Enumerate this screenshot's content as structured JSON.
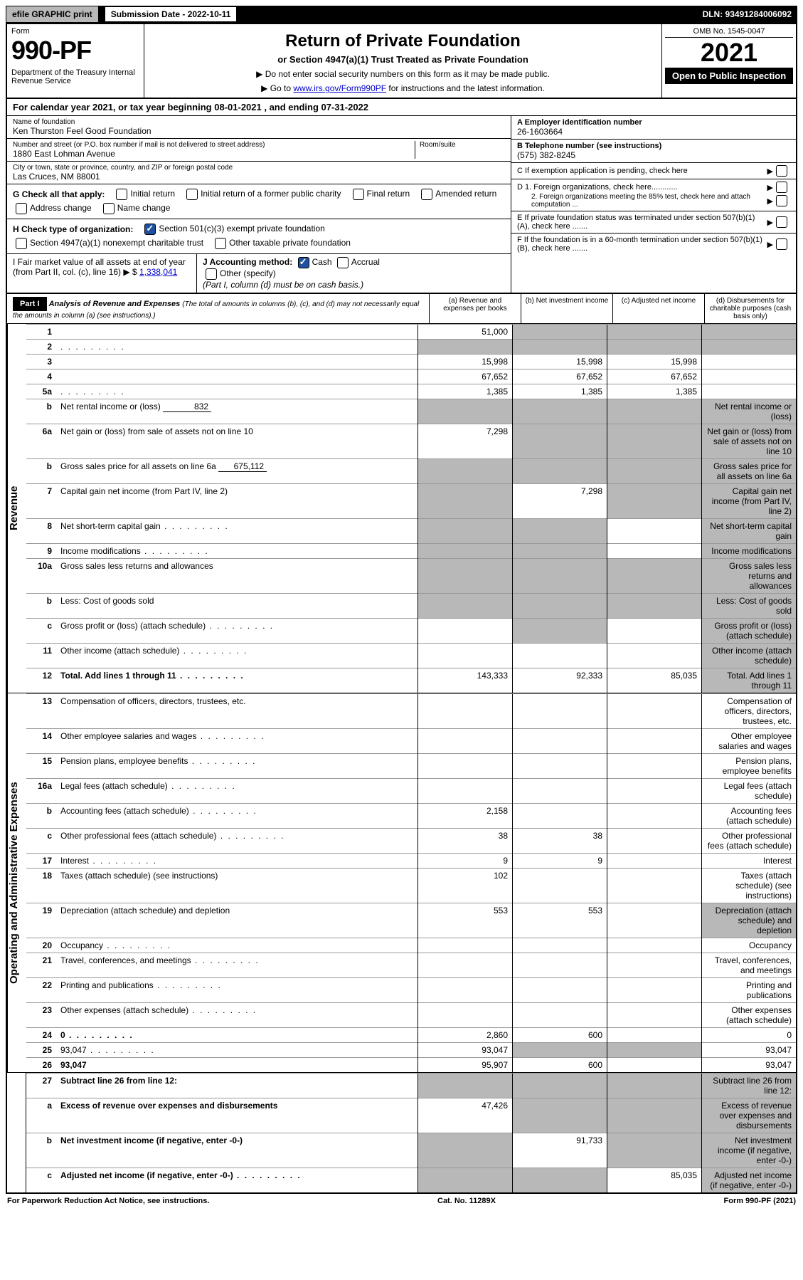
{
  "topbar": {
    "efile": "efile GRAPHIC print",
    "submission_label": "Submission Date - 2022-10-11",
    "dln": "DLN: 93491284006092"
  },
  "header": {
    "form_label": "Form",
    "form_number": "990-PF",
    "dept": "Department of the Treasury\nInternal Revenue Service",
    "title": "Return of Private Foundation",
    "subtitle": "or Section 4947(a)(1) Trust Treated as Private Foundation",
    "note1": "▶ Do not enter social security numbers on this form as it may be made public.",
    "note2_pre": "▶ Go to ",
    "note2_link": "www.irs.gov/Form990PF",
    "note2_post": " for instructions and the latest information.",
    "omb": "OMB No. 1545-0047",
    "year": "2021",
    "open": "Open to Public Inspection"
  },
  "calyear": {
    "text_pre": "For calendar year 2021, or tax year beginning ",
    "begin": "08-01-2021",
    "mid": " , and ending ",
    "end": "07-31-2022"
  },
  "entity": {
    "name_label": "Name of foundation",
    "name": "Ken Thurston Feel Good Foundation",
    "addr_label": "Number and street (or P.O. box number if mail is not delivered to street address)",
    "room_label": "Room/suite",
    "addr": "1880 East Lohman Avenue",
    "city_label": "City or town, state or province, country, and ZIP or foreign postal code",
    "city": "Las Cruces, NM  88001",
    "a_label": "A Employer identification number",
    "a_val": "26-1603664",
    "b_label": "B Telephone number (see instructions)",
    "b_val": "(575) 382-8245",
    "c_label": "C If exemption application is pending, check here",
    "d1": "D 1. Foreign organizations, check here............",
    "d2": "2. Foreign organizations meeting the 85% test, check here and attach computation ...",
    "e": "E  If private foundation status was terminated under section 507(b)(1)(A), check here .......",
    "f": "F  If the foundation is in a 60-month termination under section 507(b)(1)(B), check here .......",
    "g_label": "G Check all that apply:",
    "g_opts": [
      "Initial return",
      "Initial return of a former public charity",
      "Final return",
      "Amended return",
      "Address change",
      "Name change"
    ],
    "h_label": "H Check type of organization:",
    "h_opts": [
      "Section 501(c)(3) exempt private foundation",
      "Section 4947(a)(1) nonexempt charitable trust",
      "Other taxable private foundation"
    ],
    "i_label": "I Fair market value of all assets at end of year (from Part II, col. (c), line 16) ▶ $",
    "i_val": "1,338,041",
    "j_label": "J Accounting method:",
    "j_cash": "Cash",
    "j_accrual": "Accrual",
    "j_other": "Other (specify)",
    "j_note": "(Part I, column (d) must be on cash basis.)"
  },
  "part1": {
    "label": "Part I",
    "title": "Analysis of Revenue and Expenses",
    "subtitle": "(The total of amounts in columns (b), (c), and (d) may not necessarily equal the amounts in column (a) (see instructions).)",
    "cols": {
      "a": "(a) Revenue and expenses per books",
      "b": "(b) Net investment income",
      "c": "(c) Adjusted net income",
      "d": "(d) Disbursements for charitable purposes (cash basis only)"
    },
    "side_rev": "Revenue",
    "side_exp": "Operating and Administrative Expenses",
    "rows": [
      {
        "n": "1",
        "d": "",
        "a": "51,000",
        "b": "",
        "c": "",
        "shade_bcd": true
      },
      {
        "n": "2",
        "d": "",
        "a": "",
        "b": "",
        "c": "",
        "shade_all": true,
        "dots": true
      },
      {
        "n": "3",
        "d": "",
        "a": "15,998",
        "b": "15,998",
        "c": "15,998"
      },
      {
        "n": "4",
        "d": "",
        "a": "67,652",
        "b": "67,652",
        "c": "67,652"
      },
      {
        "n": "5a",
        "d": "",
        "a": "1,385",
        "b": "1,385",
        "c": "1,385",
        "dots": true
      },
      {
        "n": "b",
        "d": "Net rental income or (loss)",
        "fill": "832",
        "shade_abcd": true
      },
      {
        "n": "6a",
        "d": "Net gain or (loss) from sale of assets not on line 10",
        "a": "7,298",
        "shade_bcd": true
      },
      {
        "n": "b",
        "d": "Gross sales price for all assets on line 6a",
        "fill": "675,112",
        "shade_abcd": true
      },
      {
        "n": "7",
        "d": "Capital gain net income (from Part IV, line 2)",
        "b": "7,298",
        "shade_a": true,
        "shade_cd": true
      },
      {
        "n": "8",
        "d": "Net short-term capital gain",
        "shade_ab": true,
        "shade_d": true,
        "dots": true
      },
      {
        "n": "9",
        "d": "Income modifications",
        "shade_ab": true,
        "shade_d": true,
        "dots": true
      },
      {
        "n": "10a",
        "d": "Gross sales less returns and allowances",
        "box": true,
        "shade_abcd": true
      },
      {
        "n": "b",
        "d": "Less: Cost of goods sold",
        "box": true,
        "shade_abcd": true
      },
      {
        "n": "c",
        "d": "Gross profit or (loss) (attach schedule)",
        "shade_bd": true,
        "dots": true
      },
      {
        "n": "11",
        "d": "Other income (attach schedule)",
        "dots": true,
        "shade_d": true
      },
      {
        "n": "12",
        "d": "Total. Add lines 1 through 11",
        "a": "143,333",
        "b": "92,333",
        "c": "85,035",
        "bold": true,
        "shade_d": true,
        "dots": true
      }
    ],
    "exp_rows": [
      {
        "n": "13",
        "d": "Compensation of officers, directors, trustees, etc."
      },
      {
        "n": "14",
        "d": "Other employee salaries and wages",
        "dots": true
      },
      {
        "n": "15",
        "d": "Pension plans, employee benefits",
        "dots": true
      },
      {
        "n": "16a",
        "d": "Legal fees (attach schedule)",
        "dots": true
      },
      {
        "n": "b",
        "d": "Accounting fees (attach schedule)",
        "a": "2,158",
        "dots": true
      },
      {
        "n": "c",
        "d": "Other professional fees (attach schedule)",
        "a": "38",
        "b": "38",
        "dots": true
      },
      {
        "n": "17",
        "d": "Interest",
        "a": "9",
        "b": "9",
        "dots": true
      },
      {
        "n": "18",
        "d": "Taxes (attach schedule) (see instructions)",
        "a": "102"
      },
      {
        "n": "19",
        "d": "Depreciation (attach schedule) and depletion",
        "a": "553",
        "b": "553",
        "shade_d": true
      },
      {
        "n": "20",
        "d": "Occupancy",
        "dots": true
      },
      {
        "n": "21",
        "d": "Travel, conferences, and meetings",
        "dots": true
      },
      {
        "n": "22",
        "d": "Printing and publications",
        "dots": true
      },
      {
        "n": "23",
        "d": "Other expenses (attach schedule)",
        "dots": true
      },
      {
        "n": "24",
        "d": "0",
        "a": "2,860",
        "b": "600",
        "c": "",
        "bold": true,
        "dots": true
      },
      {
        "n": "25",
        "d": "93,047",
        "a": "93,047",
        "shade_bc": true,
        "dots": true
      },
      {
        "n": "26",
        "d": "93,047",
        "a": "95,907",
        "b": "600",
        "c": "",
        "bold": true
      }
    ],
    "net_rows": [
      {
        "n": "27",
        "d": "Subtract line 26 from line 12:",
        "bold": true,
        "shade_abcd": true
      },
      {
        "n": "a",
        "d": "Excess of revenue over expenses and disbursements",
        "a": "47,426",
        "bold": true,
        "shade_bcd": true
      },
      {
        "n": "b",
        "d": "Net investment income (if negative, enter -0-)",
        "b": "91,733",
        "bold": true,
        "shade_a": true,
        "shade_cd": true
      },
      {
        "n": "c",
        "d": "Adjusted net income (if negative, enter -0-)",
        "c": "85,035",
        "bold": true,
        "shade_ab": true,
        "shade_d": true,
        "dots": true
      }
    ]
  },
  "footer": {
    "left": "For Paperwork Reduction Act Notice, see instructions.",
    "mid": "Cat. No. 11289X",
    "right": "Form 990-PF (2021)"
  }
}
